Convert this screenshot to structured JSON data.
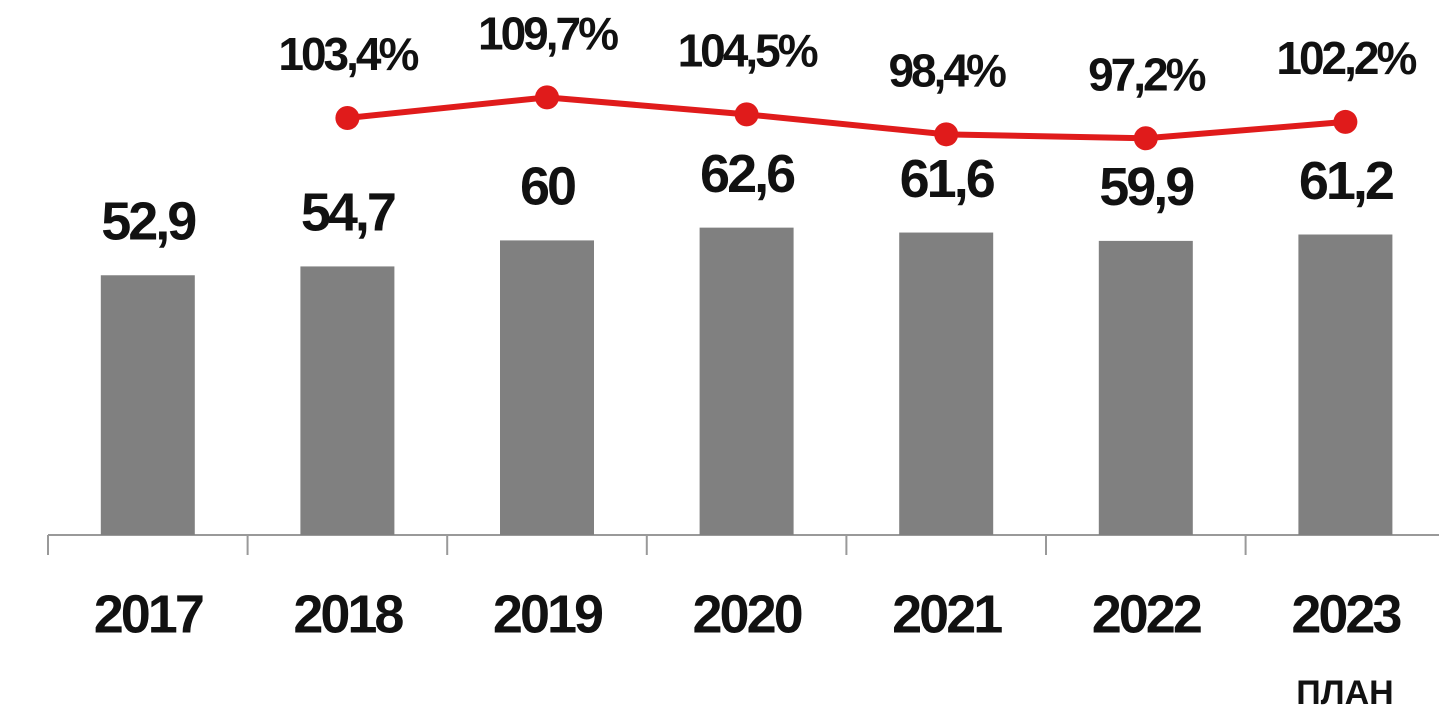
{
  "chart_data": {
    "type": "bar",
    "categories": [
      "2017",
      "2018",
      "2019",
      "2020",
      "2021",
      "2022",
      "2023"
    ],
    "annotation": "ПЛАН",
    "ylim": [
      0,
      100
    ],
    "y2lim": [
      -24,
      126
    ],
    "series": [
      {
        "type": "bar",
        "color": "#808080",
        "values": [
          52.9,
          54.7,
          60,
          62.6,
          61.6,
          59.9,
          61.2
        ],
        "value_labels": [
          "52,9",
          "54,7",
          "60",
          "62,6",
          "61,6",
          "59,9",
          "61,2"
        ]
      },
      {
        "type": "line",
        "axis": "y2",
        "color": "#e01b1b",
        "values": [
          null,
          103.4,
          109.7,
          104.5,
          98.4,
          97.2,
          102.2
        ],
        "value_labels": [
          null,
          "103,4%",
          "109,7%",
          "104,5%",
          "98,4%",
          "97,2%",
          "102,2%"
        ]
      }
    ]
  }
}
